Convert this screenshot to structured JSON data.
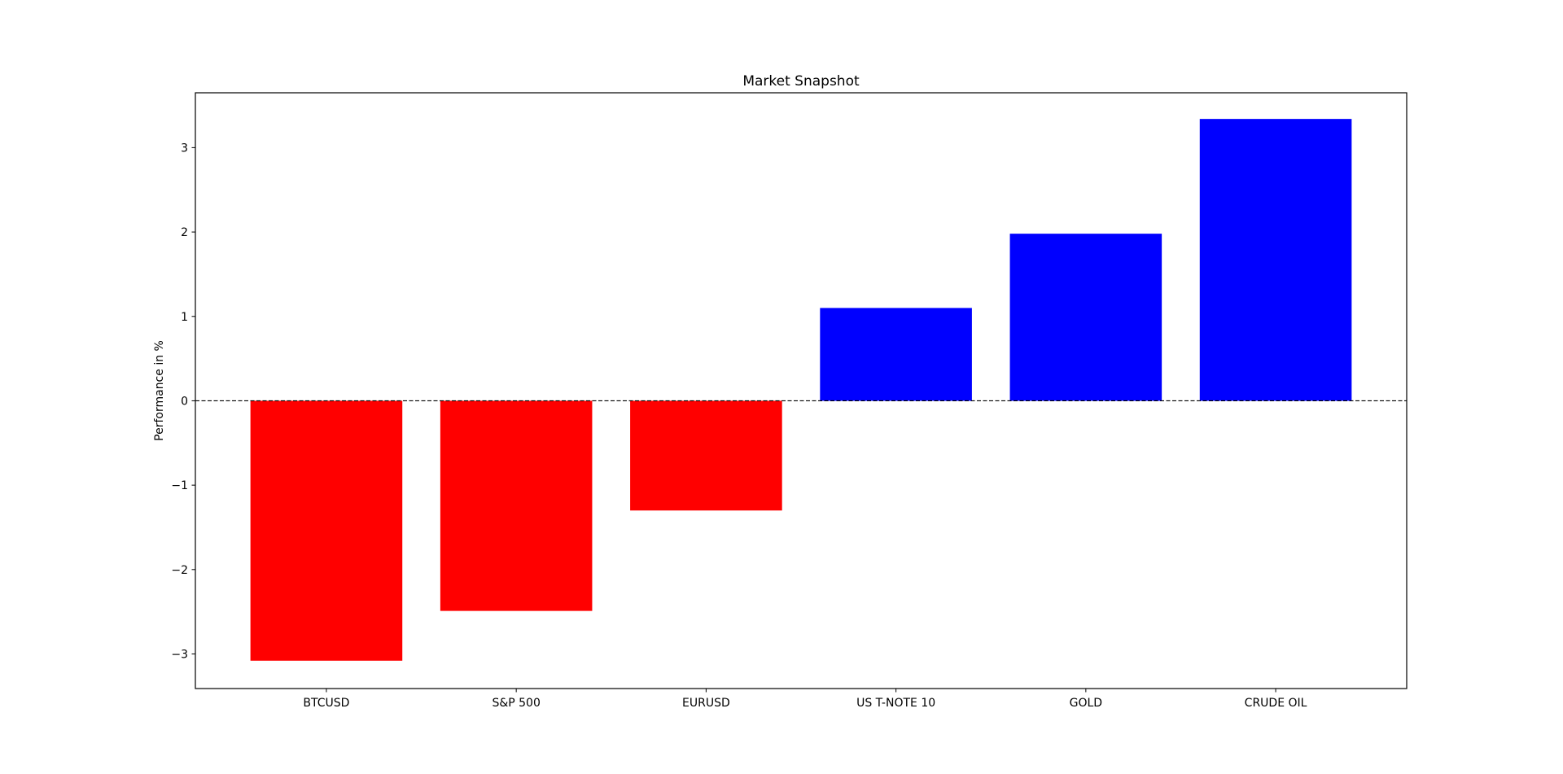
{
  "chart_data": {
    "type": "bar",
    "title": "Market Snapshot",
    "xlabel": "",
    "ylabel": "Performance in %",
    "categories": [
      "BTCUSD",
      "S&P 500",
      "EURUSD",
      "US T-NOTE 10",
      "GOLD",
      "CRUDE OIL"
    ],
    "values": [
      -3.08,
      -2.49,
      -1.3,
      1.1,
      1.98,
      3.34
    ],
    "colors": [
      "#ff0000",
      "#ff0000",
      "#ff0000",
      "#0000ff",
      "#0000ff",
      "#0000ff"
    ],
    "negative_color": "#ff0000",
    "positive_color": "#0000ff",
    "ylim": [
      -3.41,
      3.65
    ],
    "yticks": [
      -3,
      -2,
      -1,
      0,
      1,
      2,
      3
    ],
    "ytick_labels": [
      "−3",
      "−2",
      "−1",
      "0",
      "1",
      "2",
      "3"
    ],
    "zero_line": "dashed black",
    "grid": false,
    "legend": "none"
  }
}
